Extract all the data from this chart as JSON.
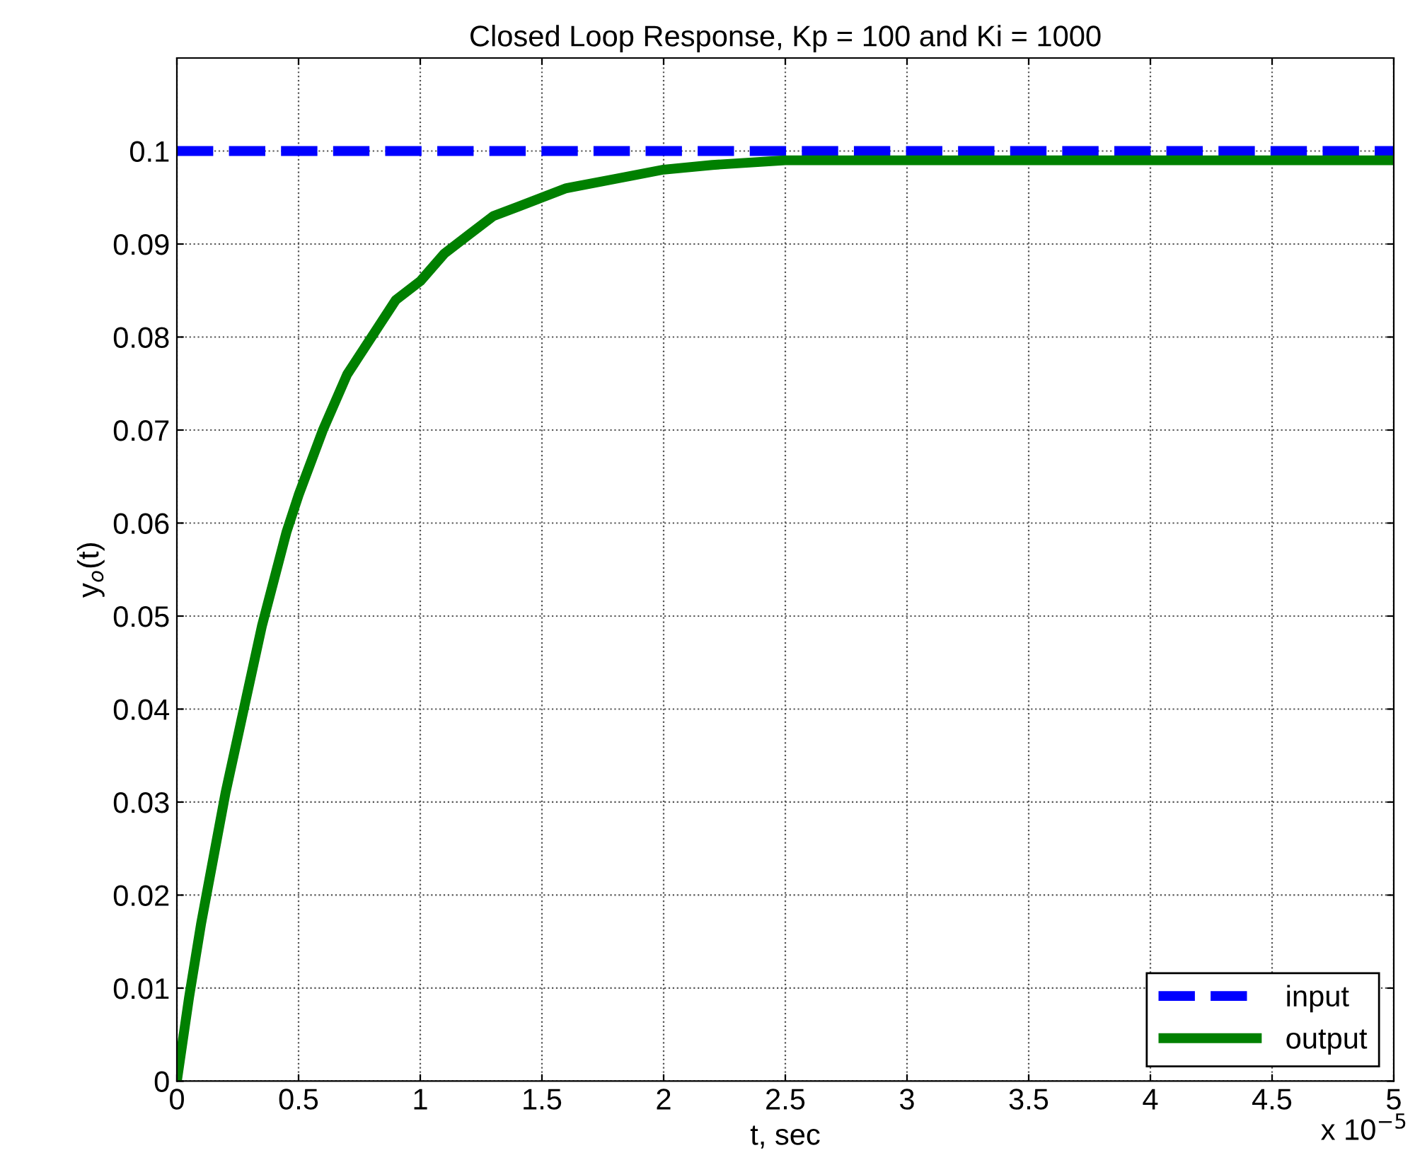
{
  "chart_data": {
    "type": "line",
    "title": "Closed Loop Response, Kp = 100 and Ki = 1000",
    "xlabel": "t, sec",
    "ylabel": "y$_{o}$(t)",
    "annotations": [
      "x 10$^{−5}$"
    ],
    "xlim": [
      0,
      5
    ],
    "ylim": [
      0,
      0.11
    ],
    "xticks": [
      0,
      0.5,
      1,
      1.5,
      2,
      2.5,
      3,
      3.5,
      4,
      4.5,
      5
    ],
    "yticks": [
      0,
      0.01,
      0.02,
      0.03,
      0.04,
      0.05,
      0.06,
      0.07,
      0.08,
      0.09,
      0.1
    ],
    "grid": true,
    "legend": "bottom right",
    "series": [
      {
        "name": "input",
        "color": "#0000ff",
        "line_style": "dashed",
        "x": [
          0,
          5
        ],
        "values": [
          0.1,
          0.1
        ]
      },
      {
        "name": "output",
        "color": "#008000",
        "line_style": "solid",
        "x": [
          0,
          0.05,
          0.1,
          0.15,
          0.2,
          0.25,
          0.3,
          0.35,
          0.4,
          0.45,
          0.5,
          0.6,
          0.7,
          0.8,
          0.9,
          1,
          1.1,
          1.2,
          1.3,
          1.4,
          1.5,
          1.6,
          1.8,
          2,
          2.2,
          2.5,
          3,
          4,
          5
        ],
        "values": [
          0,
          0.009,
          0.017,
          0.024,
          0.031,
          0.037,
          0.043,
          0.049,
          0.054,
          0.059,
          0.063,
          0.07,
          0.076,
          0.08,
          0.084,
          0.086,
          0.089,
          0.091,
          0.093,
          0.094,
          0.095,
          0.096,
          0.097,
          0.098,
          0.0985,
          0.099,
          0.099,
          0.099,
          0.099
        ]
      }
    ]
  }
}
